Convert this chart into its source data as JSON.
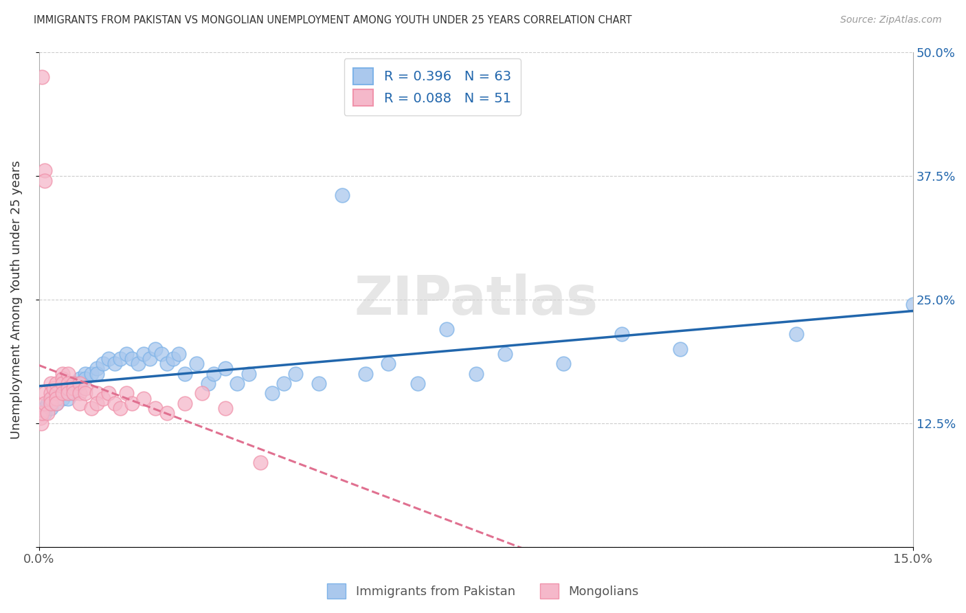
{
  "title": "IMMIGRANTS FROM PAKISTAN VS MONGOLIAN UNEMPLOYMENT AMONG YOUTH UNDER 25 YEARS CORRELATION CHART",
  "source": "Source: ZipAtlas.com",
  "ylabel": "Unemployment Among Youth under 25 years",
  "xlim": [
    0.0,
    0.15
  ],
  "ylim": [
    0.0,
    0.5
  ],
  "yticks": [
    0.0,
    0.125,
    0.25,
    0.375,
    0.5
  ],
  "yticklabels_right": [
    "",
    "12.5%",
    "25.0%",
    "37.5%",
    "50.0%"
  ],
  "pakistan_color": "#aac8ed",
  "mongolian_color": "#f5b8ca",
  "pakistan_edge_color": "#7eb3e8",
  "mongolian_edge_color": "#f093ab",
  "pakistan_line_color": "#2166ac",
  "mongolian_line_color": "#e07090",
  "R_pakistan": 0.396,
  "N_pakistan": 63,
  "R_mongolian": 0.088,
  "N_mongolian": 51,
  "legend_label_pakistan": "Immigrants from Pakistan",
  "legend_label_mongolian": "Mongolians",
  "watermark": "ZIPatlas",
  "pakistan_scatter_x": [
    0.0005,
    0.001,
    0.001,
    0.0015,
    0.002,
    0.002,
    0.002,
    0.003,
    0.003,
    0.003,
    0.004,
    0.004,
    0.004,
    0.005,
    0.005,
    0.005,
    0.006,
    0.006,
    0.006,
    0.007,
    0.007,
    0.008,
    0.008,
    0.009,
    0.01,
    0.01,
    0.011,
    0.012,
    0.013,
    0.014,
    0.015,
    0.016,
    0.017,
    0.018,
    0.019,
    0.02,
    0.021,
    0.022,
    0.023,
    0.024,
    0.025,
    0.027,
    0.029,
    0.03,
    0.032,
    0.034,
    0.036,
    0.04,
    0.042,
    0.044,
    0.048,
    0.052,
    0.056,
    0.06,
    0.065,
    0.07,
    0.075,
    0.08,
    0.09,
    0.1,
    0.11,
    0.13,
    0.15
  ],
  "pakistan_scatter_y": [
    0.135,
    0.14,
    0.135,
    0.145,
    0.15,
    0.145,
    0.14,
    0.155,
    0.15,
    0.145,
    0.16,
    0.155,
    0.15,
    0.16,
    0.155,
    0.15,
    0.165,
    0.16,
    0.155,
    0.17,
    0.165,
    0.175,
    0.17,
    0.175,
    0.18,
    0.175,
    0.185,
    0.19,
    0.185,
    0.19,
    0.195,
    0.19,
    0.185,
    0.195,
    0.19,
    0.2,
    0.195,
    0.185,
    0.19,
    0.195,
    0.175,
    0.185,
    0.165,
    0.175,
    0.18,
    0.165,
    0.175,
    0.155,
    0.165,
    0.175,
    0.165,
    0.355,
    0.175,
    0.185,
    0.165,
    0.22,
    0.175,
    0.195,
    0.185,
    0.215,
    0.2,
    0.215,
    0.245
  ],
  "mongolian_scatter_x": [
    0.0002,
    0.0003,
    0.0004,
    0.0005,
    0.0005,
    0.001,
    0.001,
    0.001,
    0.001,
    0.0015,
    0.002,
    0.002,
    0.002,
    0.002,
    0.0025,
    0.003,
    0.003,
    0.003,
    0.003,
    0.004,
    0.004,
    0.004,
    0.004,
    0.005,
    0.005,
    0.005,
    0.005,
    0.006,
    0.006,
    0.006,
    0.007,
    0.007,
    0.007,
    0.008,
    0.008,
    0.009,
    0.01,
    0.01,
    0.011,
    0.012,
    0.013,
    0.014,
    0.015,
    0.016,
    0.018,
    0.02,
    0.022,
    0.025,
    0.028,
    0.032,
    0.038
  ],
  "mongolian_scatter_y": [
    0.135,
    0.13,
    0.125,
    0.135,
    0.475,
    0.38,
    0.37,
    0.155,
    0.145,
    0.135,
    0.165,
    0.155,
    0.15,
    0.145,
    0.16,
    0.165,
    0.155,
    0.15,
    0.145,
    0.175,
    0.17,
    0.165,
    0.155,
    0.175,
    0.165,
    0.16,
    0.155,
    0.165,
    0.16,
    0.155,
    0.165,
    0.155,
    0.145,
    0.16,
    0.155,
    0.14,
    0.155,
    0.145,
    0.15,
    0.155,
    0.145,
    0.14,
    0.155,
    0.145,
    0.15,
    0.14,
    0.135,
    0.145,
    0.155,
    0.14,
    0.085
  ]
}
